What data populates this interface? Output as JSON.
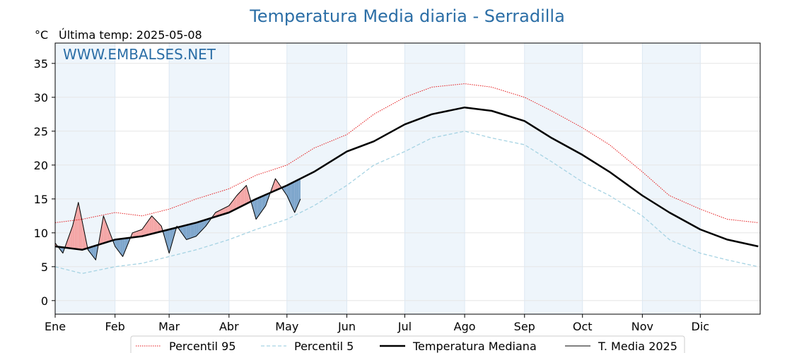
{
  "chart_data": {
    "type": "line",
    "title": "Temperatura Media diaria - Serradilla",
    "unit_label": "°C",
    "subtitle": "Última temp: 2025-05-08",
    "watermark": "WWW.EMBALSES.NET",
    "xlabel": "",
    "ylabel": "",
    "categories": [
      "Ene",
      "Feb",
      "Mar",
      "Abr",
      "May",
      "Jun",
      "Jul",
      "Ago",
      "Sep",
      "Oct",
      "Nov",
      "Dic"
    ],
    "ylim": [
      -2,
      38
    ],
    "yticks": [
      0,
      5,
      10,
      15,
      20,
      25,
      30,
      35
    ],
    "grid": true,
    "legend_position": "bottom",
    "colors": {
      "p95": "#e41a1c",
      "p5": "#a6d3e3",
      "median": "#000000",
      "current": "#000000",
      "above_fill": "#f4a6a6",
      "below_fill": "#7ea6cc",
      "band": "#eef5fb",
      "title": "#2b6ea6"
    },
    "series": [
      {
        "name": "Percentil 95",
        "style": "dotted",
        "x": [
          "01-01",
          "01-15",
          "02-01",
          "02-15",
          "03-01",
          "03-15",
          "04-01",
          "04-15",
          "05-01",
          "05-15",
          "06-01",
          "06-15",
          "07-01",
          "07-15",
          "08-01",
          "08-15",
          "09-01",
          "09-15",
          "10-01",
          "10-15",
          "11-01",
          "11-15",
          "12-01",
          "12-15",
          "12-31"
        ],
        "values": [
          11.5,
          12.0,
          13.0,
          12.5,
          13.5,
          15.0,
          16.5,
          18.5,
          20.0,
          22.5,
          24.5,
          27.5,
          30.0,
          31.5,
          32.0,
          31.5,
          30.0,
          28.0,
          25.5,
          23.0,
          19.0,
          15.5,
          13.5,
          12.0,
          11.5
        ]
      },
      {
        "name": "Percentil 5",
        "style": "dashed",
        "x": [
          "01-01",
          "01-15",
          "02-01",
          "02-15",
          "03-01",
          "03-15",
          "04-01",
          "04-15",
          "05-01",
          "05-15",
          "06-01",
          "06-15",
          "07-01",
          "07-15",
          "08-01",
          "08-15",
          "09-01",
          "09-15",
          "10-01",
          "10-15",
          "11-01",
          "11-15",
          "12-01",
          "12-15",
          "12-31"
        ],
        "values": [
          5.0,
          4.0,
          5.0,
          5.5,
          6.5,
          7.5,
          9.0,
          10.5,
          12.0,
          14.0,
          17.0,
          20.0,
          22.0,
          24.0,
          25.0,
          24.0,
          23.0,
          20.5,
          17.5,
          15.5,
          12.5,
          9.0,
          7.0,
          6.0,
          5.0
        ]
      },
      {
        "name": "Temperatura Mediana",
        "style": "thick",
        "x": [
          "01-01",
          "01-15",
          "02-01",
          "02-15",
          "03-01",
          "03-15",
          "04-01",
          "04-15",
          "05-01",
          "05-15",
          "06-01",
          "06-15",
          "07-01",
          "07-15",
          "08-01",
          "08-15",
          "09-01",
          "09-15",
          "10-01",
          "10-15",
          "11-01",
          "11-15",
          "12-01",
          "12-15",
          "12-31"
        ],
        "values": [
          8.0,
          7.5,
          9.0,
          9.5,
          10.5,
          11.5,
          13.0,
          15.0,
          17.0,
          19.0,
          22.0,
          23.5,
          26.0,
          27.5,
          28.5,
          28.0,
          26.5,
          24.0,
          21.5,
          19.0,
          15.5,
          13.0,
          10.5,
          9.0,
          8.0
        ]
      },
      {
        "name": "T. Media 2025",
        "style": "thin",
        "x": [
          "01-01",
          "01-05",
          "01-10",
          "01-13",
          "01-18",
          "01-22",
          "01-26",
          "02-01",
          "02-05",
          "02-10",
          "02-15",
          "02-20",
          "02-25",
          "03-01",
          "03-05",
          "03-10",
          "03-15",
          "03-20",
          "03-25",
          "04-01",
          "04-05",
          "04-10",
          "04-15",
          "04-20",
          "04-25",
          "05-01",
          "05-05",
          "05-08"
        ],
        "values": [
          8.5,
          7.0,
          11.0,
          14.5,
          7.5,
          6.0,
          12.5,
          8.0,
          6.5,
          10.0,
          10.5,
          12.5,
          11.0,
          7.0,
          11.0,
          9.0,
          9.5,
          11.0,
          13.0,
          14.0,
          15.5,
          17.0,
          12.0,
          14.0,
          18.0,
          15.5,
          13.0,
          15.0
        ]
      }
    ]
  }
}
